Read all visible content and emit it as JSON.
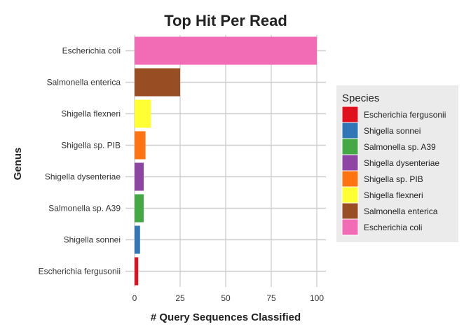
{
  "chart_data": {
    "type": "bar",
    "orientation": "horizontal",
    "title": "Top Hit Per Read",
    "xlabel": "# Query Sequences Classified",
    "ylabel": "Genus",
    "categories": [
      "Escherichia coli",
      "Salmonella enterica",
      "Shigella flexneri",
      "Shigella sp. PIB",
      "Shigella dysenteriae",
      "Salmonella sp. A39",
      "Shigella sonnei",
      "Escherichia fergusonii"
    ],
    "values": [
      100,
      25,
      9,
      6,
      5,
      5,
      3,
      2
    ],
    "colors": [
      "#f26bb5",
      "#994d22",
      "#ffff33",
      "#ff7311",
      "#8e44a3",
      "#44a844",
      "#3277b5",
      "#e0111c"
    ],
    "xlim": [
      0,
      105
    ],
    "xticks": [
      0,
      25,
      50,
      75,
      100
    ],
    "grid": true,
    "legend": {
      "title": "Species",
      "placement": "right",
      "entries": [
        {
          "label": "Escherichia fergusonii",
          "color": "#e0111c"
        },
        {
          "label": "Shigella sonnei",
          "color": "#3277b5"
        },
        {
          "label": "Salmonella sp. A39",
          "color": "#44a844"
        },
        {
          "label": "Shigella dysenteriae",
          "color": "#8e44a3"
        },
        {
          "label": "Shigella sp. PIB",
          "color": "#ff7311"
        },
        {
          "label": "Shigella flexneri",
          "color": "#ffff33"
        },
        {
          "label": "Salmonella enterica",
          "color": "#994d22"
        },
        {
          "label": "Escherichia coli",
          "color": "#f26bb5"
        }
      ]
    }
  }
}
